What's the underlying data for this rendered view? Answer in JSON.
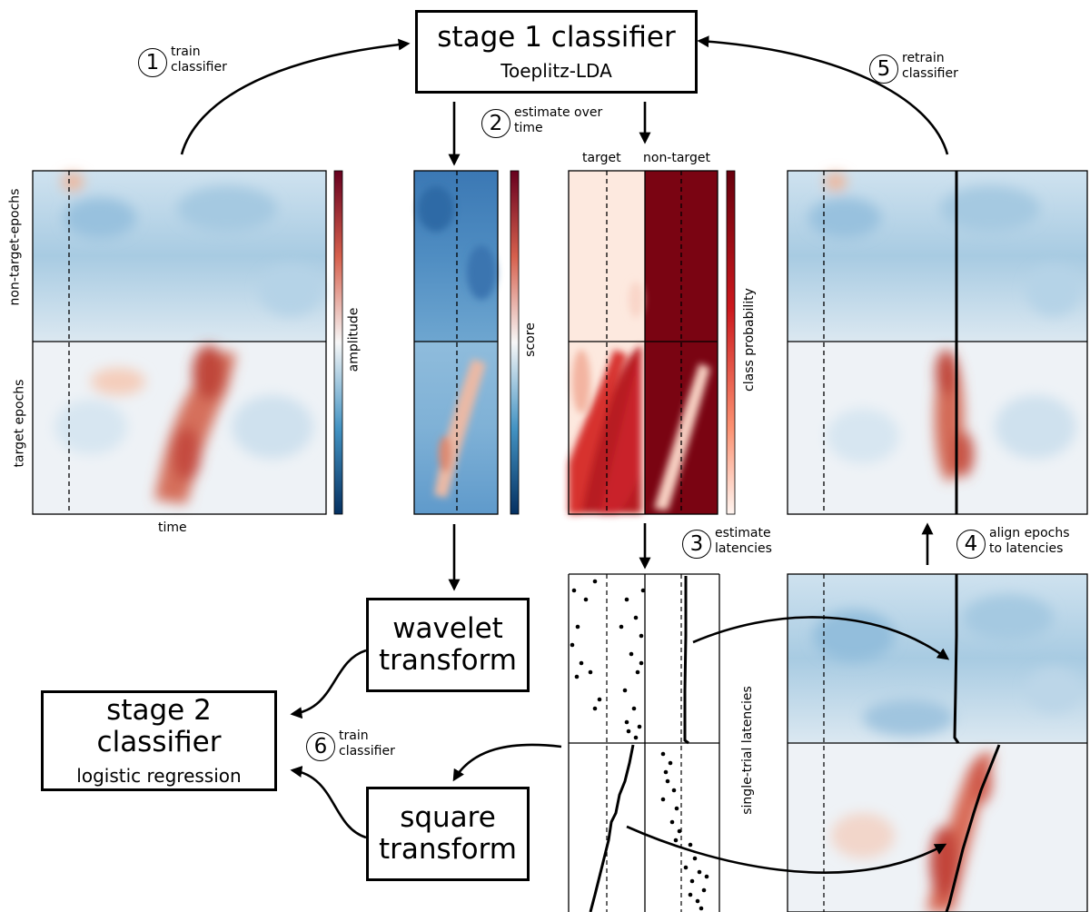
{
  "stage1": {
    "title": "stage 1 classifier",
    "subtitle": "Toeplitz-LDA"
  },
  "stage2": {
    "title": "stage 2 classifier",
    "subtitle": "logistic regression"
  },
  "wavelet": {
    "line1": "wavelet",
    "line2": "transform"
  },
  "square": {
    "line1": "square",
    "line2": "transform"
  },
  "steps": [
    {
      "num": "1",
      "line1": "train",
      "line2": "classifier"
    },
    {
      "num": "2",
      "line1": "estimate over",
      "line2": "time"
    },
    {
      "num": "3",
      "line1": "estimate",
      "line2": "latencies"
    },
    {
      "num": "4",
      "line1": "align epochs",
      "line2": "to latencies"
    },
    {
      "num": "5",
      "line1": "retrain",
      "line2": "classifier"
    },
    {
      "num": "6",
      "line1": "train",
      "line2": "classifier"
    }
  ],
  "axis_labels": {
    "non_target_epochs": "non-target-epochs",
    "target_epochs": "target epochs",
    "time": "time",
    "amplitude": "amplitude",
    "score": "score",
    "class_probability": "class probability",
    "single_trial_latencies": "single-trial latencies",
    "target": "target",
    "non_target": "non-target"
  },
  "colors": {
    "red": "#8b0a1d",
    "blue": "#2c66a6",
    "light": "#f7f7f7",
    "line": "#000000"
  }
}
